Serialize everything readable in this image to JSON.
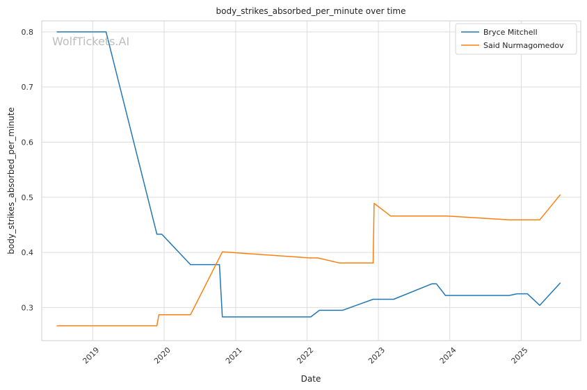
{
  "chart_data": {
    "type": "line",
    "title": "body_strikes_absorbed_per_minute over time",
    "xlabel": "Date",
    "ylabel": "body_strikes_absorbed_per_minute",
    "watermark": "WolfTickets.AI",
    "xlim": [
      "2018-04-15",
      "2025-11-01"
    ],
    "ylim": [
      0.24,
      0.82
    ],
    "x_ticks": [
      "2019-01-01",
      "2020-01-01",
      "2021-01-01",
      "2022-01-01",
      "2023-01-01",
      "2024-01-01",
      "2025-01-01"
    ],
    "x_tick_labels": [
      "2019",
      "2020",
      "2021",
      "2022",
      "2023",
      "2024",
      "2025"
    ],
    "y_ticks": [
      0.3,
      0.4,
      0.5,
      0.6,
      0.7,
      0.8
    ],
    "y_tick_labels": [
      "0.3",
      "0.4",
      "0.5",
      "0.6",
      "0.7",
      "0.8"
    ],
    "grid": true,
    "legend_position": "top-right",
    "series": [
      {
        "name": "Bryce Mitchell",
        "color": "#1f77b4",
        "x": [
          "2018-07-01",
          "2019-03-10",
          "2019-11-25",
          "2019-12-20",
          "2020-05-15",
          "2020-10-10",
          "2020-10-25",
          "2022-01-20",
          "2022-03-05",
          "2022-07-01",
          "2022-12-05",
          "2023-03-20",
          "2023-10-01",
          "2023-10-25",
          "2023-12-10",
          "2024-11-01",
          "2024-12-10",
          "2025-02-01",
          "2025-04-05",
          "2025-07-20"
        ],
        "y": [
          0.8,
          0.8,
          0.433,
          0.433,
          0.378,
          0.378,
          0.283,
          0.283,
          0.295,
          0.295,
          0.315,
          0.315,
          0.343,
          0.343,
          0.322,
          0.322,
          0.325,
          0.325,
          0.304,
          0.345
        ]
      },
      {
        "name": "Said Nurmagomedov",
        "color": "#ff7f0e",
        "x": [
          "2018-07-01",
          "2019-11-25",
          "2019-12-05",
          "2020-05-15",
          "2020-10-25",
          "2022-01-15",
          "2022-02-25",
          "2022-06-15",
          "2022-12-05",
          "2022-12-10",
          "2023-03-05",
          "2023-12-20",
          "2024-11-01",
          "2025-04-05",
          "2025-07-20"
        ],
        "y": [
          0.267,
          0.267,
          0.287,
          0.287,
          0.401,
          0.39,
          0.39,
          0.381,
          0.381,
          0.489,
          0.466,
          0.466,
          0.459,
          0.459,
          0.505
        ]
      }
    ]
  }
}
